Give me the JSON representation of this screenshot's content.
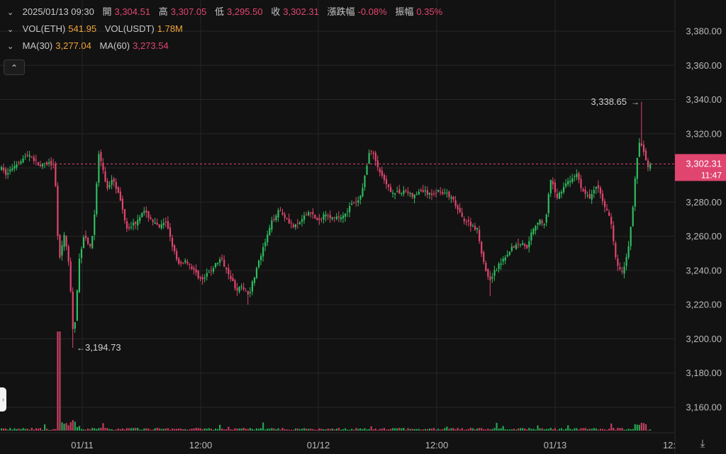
{
  "legend": {
    "datetime": "2025/01/13 09:30",
    "open_label": "開",
    "open": "3,304.51",
    "high_label": "高",
    "high": "3,307.05",
    "low_label": "低",
    "low": "3,295.50",
    "close_label": "收",
    "close": "3,302.31",
    "change_label": "漲跌幅",
    "change": "-0.08%",
    "amplitude_label": "振幅",
    "amplitude": "0.35%",
    "vol_eth_label": "VOL(ETH)",
    "vol_eth": "541.95",
    "vol_usdt_label": "VOL(USDT)",
    "vol_usdt": "1.78M",
    "ma30_label": "MA(30)",
    "ma30": "3,277.04",
    "ma60_label": "MA(60)",
    "ma60": "3,273.54"
  },
  "price_tag": {
    "price": "3,302.31",
    "countdown": "11:47"
  },
  "annotations": {
    "high": "3,338.65",
    "low": "3,194.73"
  },
  "icons": {
    "collapse": "chevron-up-icon",
    "side_handle": "chevron-right-icon",
    "autoscale": "fit-vertical-icon",
    "legend_toggle": "chevron-down-icon"
  },
  "colors": {
    "up": "#2ebd5f",
    "down": "#e0456f",
    "background": "#121212",
    "grid": "#262626",
    "price_line": "#e0456f",
    "ma30": "#f0a33a",
    "ma60": "#e0456f"
  },
  "chart_data": {
    "type": "candlestick",
    "y_ticks": [
      "3,160.00",
      "3,180.00",
      "3,200.00",
      "3,220.00",
      "3,240.00",
      "3,260.00",
      "3,280.00",
      "3,300.00",
      "3,320.00",
      "3,340.00",
      "3,360.00",
      "3,380.00"
    ],
    "x_ticks": [
      "01/11",
      "12:00",
      "01/12",
      "12:00",
      "01/13",
      "12:"
    ],
    "ylim": [
      3150,
      3400
    ],
    "last_price": 3302.31,
    "extremes": {
      "high": 3338.65,
      "low": 3194.73
    },
    "price_path": [
      {
        "t": 0,
        "p": 3300
      },
      {
        "t": 8,
        "p": 3296
      },
      {
        "t": 20,
        "p": 3302
      },
      {
        "t": 40,
        "p": 3308
      },
      {
        "t": 55,
        "p": 3301
      },
      {
        "t": 70,
        "p": 3303
      },
      {
        "t": 76,
        "p": 3300
      },
      {
        "t": 82,
        "p": 3245
      },
      {
        "t": 90,
        "p": 3262
      },
      {
        "t": 97,
        "p": 3240
      },
      {
        "t": 103,
        "p": 3197
      },
      {
        "t": 110,
        "p": 3245
      },
      {
        "t": 118,
        "p": 3262
      },
      {
        "t": 127,
        "p": 3252
      },
      {
        "t": 132,
        "p": 3272
      },
      {
        "t": 138,
        "p": 3308
      },
      {
        "t": 143,
        "p": 3302
      },
      {
        "t": 150,
        "p": 3287
      },
      {
        "t": 158,
        "p": 3295
      },
      {
        "t": 168,
        "p": 3282
      },
      {
        "t": 178,
        "p": 3265
      },
      {
        "t": 190,
        "p": 3268
      },
      {
        "t": 200,
        "p": 3275
      },
      {
        "t": 210,
        "p": 3271
      },
      {
        "t": 222,
        "p": 3265
      },
      {
        "t": 234,
        "p": 3268
      },
      {
        "t": 240,
        "p": 3258
      },
      {
        "t": 250,
        "p": 3243
      },
      {
        "t": 262,
        "p": 3246
      },
      {
        "t": 272,
        "p": 3240
      },
      {
        "t": 284,
        "p": 3234
      },
      {
        "t": 296,
        "p": 3240
      },
      {
        "t": 310,
        "p": 3247
      },
      {
        "t": 320,
        "p": 3240
      },
      {
        "t": 332,
        "p": 3229
      },
      {
        "t": 342,
        "p": 3230
      },
      {
        "t": 350,
        "p": 3226
      },
      {
        "t": 360,
        "p": 3240
      },
      {
        "t": 372,
        "p": 3255
      },
      {
        "t": 382,
        "p": 3268
      },
      {
        "t": 392,
        "p": 3276
      },
      {
        "t": 402,
        "p": 3271
      },
      {
        "t": 414,
        "p": 3265
      },
      {
        "t": 426,
        "p": 3270
      },
      {
        "t": 436,
        "p": 3275
      },
      {
        "t": 448,
        "p": 3268
      },
      {
        "t": 458,
        "p": 3274
      },
      {
        "t": 470,
        "p": 3270
      },
      {
        "t": 482,
        "p": 3272
      },
      {
        "t": 494,
        "p": 3278
      },
      {
        "t": 506,
        "p": 3281
      },
      {
        "t": 514,
        "p": 3296
      },
      {
        "t": 521,
        "p": 3312
      },
      {
        "t": 528,
        "p": 3305
      },
      {
        "t": 536,
        "p": 3296
      },
      {
        "t": 546,
        "p": 3288
      },
      {
        "t": 558,
        "p": 3285
      },
      {
        "t": 570,
        "p": 3287
      },
      {
        "t": 582,
        "p": 3283
      },
      {
        "t": 594,
        "p": 3287
      },
      {
        "t": 606,
        "p": 3284
      },
      {
        "t": 618,
        "p": 3287
      },
      {
        "t": 628,
        "p": 3285
      },
      {
        "t": 638,
        "p": 3281
      },
      {
        "t": 650,
        "p": 3271
      },
      {
        "t": 660,
        "p": 3268
      },
      {
        "t": 672,
        "p": 3264
      },
      {
        "t": 680,
        "p": 3247
      },
      {
        "t": 688,
        "p": 3234
      },
      {
        "t": 698,
        "p": 3240
      },
      {
        "t": 710,
        "p": 3248
      },
      {
        "t": 722,
        "p": 3254
      },
      {
        "t": 734,
        "p": 3256
      },
      {
        "t": 742,
        "p": 3254
      },
      {
        "t": 750,
        "p": 3264
      },
      {
        "t": 760,
        "p": 3270
      },
      {
        "t": 768,
        "p": 3266
      },
      {
        "t": 775,
        "p": 3293
      },
      {
        "t": 785,
        "p": 3283
      },
      {
        "t": 795,
        "p": 3290
      },
      {
        "t": 805,
        "p": 3293
      },
      {
        "t": 812,
        "p": 3297
      },
      {
        "t": 820,
        "p": 3287
      },
      {
        "t": 830,
        "p": 3282
      },
      {
        "t": 840,
        "p": 3290
      },
      {
        "t": 850,
        "p": 3280
      },
      {
        "t": 860,
        "p": 3270
      },
      {
        "t": 868,
        "p": 3245
      },
      {
        "t": 876,
        "p": 3238
      },
      {
        "t": 884,
        "p": 3250
      },
      {
        "t": 890,
        "p": 3270
      },
      {
        "t": 896,
        "p": 3300
      },
      {
        "t": 902,
        "p": 3318
      },
      {
        "t": 907,
        "p": 3308
      },
      {
        "t": 912,
        "p": 3300
      },
      {
        "t": 916,
        "p": 3302
      }
    ]
  }
}
